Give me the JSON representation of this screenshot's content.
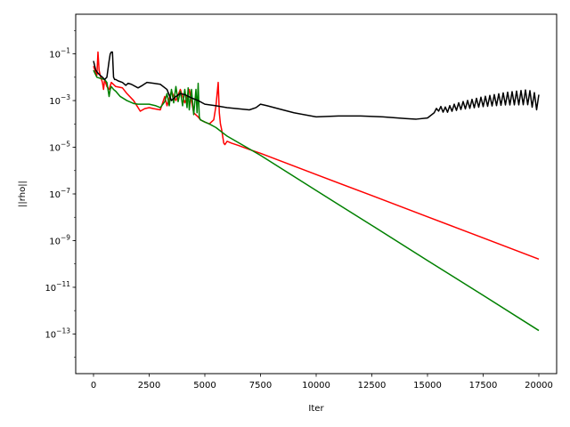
{
  "chart_data": {
    "type": "line",
    "title": "",
    "xlabel": "Iter",
    "ylabel": "||rho||",
    "xlim": [
      -800,
      20800
    ],
    "ylim_log10": [
      -14.7,
      0.7
    ],
    "yscale": "log",
    "grid": false,
    "legend": "none",
    "x_ticks": [
      {
        "value": 0,
        "label": "0"
      },
      {
        "value": 2500,
        "label": "2500"
      },
      {
        "value": 5000,
        "label": "5000"
      },
      {
        "value": 7500,
        "label": "7500"
      },
      {
        "value": 10000,
        "label": "10000"
      },
      {
        "value": 12500,
        "label": "12500"
      },
      {
        "value": 15000,
        "label": "15000"
      },
      {
        "value": 17500,
        "label": "17500"
      },
      {
        "value": 20000,
        "label": "20000"
      }
    ],
    "y_ticks": [
      {
        "exp": -1,
        "base": "10",
        "sup": "−1"
      },
      {
        "exp": -3,
        "base": "10",
        "sup": "−3"
      },
      {
        "exp": -5,
        "base": "10",
        "sup": "−5"
      },
      {
        "exp": -7,
        "base": "10",
        "sup": "−7"
      },
      {
        "exp": -9,
        "base": "10",
        "sup": "−9"
      },
      {
        "exp": -11,
        "base": "10",
        "sup": "−11"
      },
      {
        "exp": -13,
        "base": "10",
        "sup": "−13"
      }
    ],
    "series": [
      {
        "color": "#ff0000",
        "x": [
          0,
          150,
          200,
          250,
          300,
          400,
          450,
          500,
          600,
          700,
          800,
          1000,
          1300,
          1500,
          1800,
          2000,
          2100,
          2300,
          2500,
          2700,
          3000,
          3200,
          3300,
          3500,
          3700,
          3900,
          4100,
          4300,
          4500,
          4700,
          4800,
          5000,
          5200,
          5400,
          5500,
          5600,
          5650,
          5700,
          5750,
          5800,
          5850,
          5900,
          6000,
          6200,
          6500,
          7000,
          7500,
          10000,
          12500,
          15000,
          17500,
          20000
        ],
        "y": [
          0.03,
          0.012,
          0.12,
          0.02,
          0.012,
          0.006,
          0.003,
          0.008,
          0.004,
          0.003,
          0.006,
          0.004,
          0.0035,
          0.002,
          0.001,
          0.0005,
          0.00035,
          0.00045,
          0.0005,
          0.00045,
          0.0004,
          0.0015,
          0.0006,
          0.0025,
          0.001,
          0.003,
          0.0008,
          0.003,
          0.0003,
          0.0002,
          0.00015,
          0.00012,
          0.0001,
          0.00015,
          0.0006,
          0.006,
          0.0003,
          0.0001,
          6e-05,
          3e-05,
          1.5e-05,
          1.3e-05,
          1.8e-05,
          1.5e-05,
          1.2e-05,
          8e-06,
          5.5e-06,
          6.8e-07,
          8.5e-08,
          1.05e-08,
          1.3e-09,
          1.6e-10
        ]
      },
      {
        "color": "#008000",
        "x": [
          0,
          150,
          300,
          500,
          600,
          700,
          750,
          800,
          900,
          1000,
          1200,
          1500,
          1800,
          2000,
          2200,
          2500,
          2800,
          3000,
          3200,
          3300,
          3400,
          3500,
          3600,
          3700,
          3800,
          3900,
          4000,
          4100,
          4200,
          4250,
          4300,
          4400,
          4500,
          4600,
          4650,
          4700,
          4750,
          4800,
          5000,
          5200,
          5500,
          6000,
          7500,
          10000,
          12500,
          15000,
          17500,
          20000
        ],
        "y": [
          0.02,
          0.01,
          0.009,
          0.008,
          0.006,
          0.0015,
          0.003,
          0.004,
          0.003,
          0.0025,
          0.0015,
          0.001,
          0.00075,
          0.0007,
          0.0007,
          0.0007,
          0.0006,
          0.0005,
          0.0009,
          0.002,
          0.0006,
          0.003,
          0.0008,
          0.004,
          0.0009,
          0.0025,
          0.0006,
          0.003,
          0.0005,
          0.0035,
          0.0004,
          0.003,
          0.00025,
          0.003,
          0.0003,
          0.0055,
          0.0002,
          0.00015,
          0.00012,
          0.0001,
          7e-05,
          3e-05,
          4.5e-06,
          1.4e-07,
          4.5e-09,
          1.4e-10,
          4.5e-12,
          1.4e-13
        ]
      },
      {
        "color": "#000000",
        "x": [
          0,
          100,
          200,
          300,
          400,
          500,
          600,
          700,
          750,
          800,
          850,
          900,
          950,
          1000,
          1100,
          1300,
          1450,
          1550,
          1700,
          2000,
          2200,
          2400,
          2700,
          3000,
          3300,
          3500,
          3700,
          3900,
          4100,
          4400,
          4700,
          5000,
          5500,
          6000,
          7000,
          7300,
          7500,
          7800,
          8500,
          9000,
          10000,
          11000,
          12000,
          13000,
          14000,
          14500,
          15000,
          15300,
          15500,
          15800,
          16500,
          17500,
          18500,
          19500,
          20000
        ],
        "y": [
          0.05,
          0.02,
          0.015,
          0.012,
          0.01,
          0.008,
          0.01,
          0.05,
          0.1,
          0.12,
          0.12,
          0.01,
          0.008,
          0.008,
          0.007,
          0.006,
          0.0045,
          0.0055,
          0.005,
          0.0035,
          0.0045,
          0.006,
          0.0055,
          0.005,
          0.003,
          0.001,
          0.0015,
          0.002,
          0.0018,
          0.0013,
          0.001,
          0.0007,
          0.0006,
          0.0005,
          0.0004,
          0.0005,
          0.0007,
          0.0006,
          0.0004,
          0.0003,
          0.0002,
          0.00022,
          0.00022,
          0.0002,
          0.00017,
          0.00016,
          0.00018,
          0.0003,
          0.00045,
          0.0004,
          0.0006,
          0.0009,
          0.0012,
          0.0014,
          0.0008
        ]
      }
    ],
    "oscillation": {
      "series_index": 2,
      "x_start": 15400,
      "x_end": 20000,
      "period": 200,
      "log_amp_start": 0.1,
      "log_amp_end": 0.35
    }
  }
}
